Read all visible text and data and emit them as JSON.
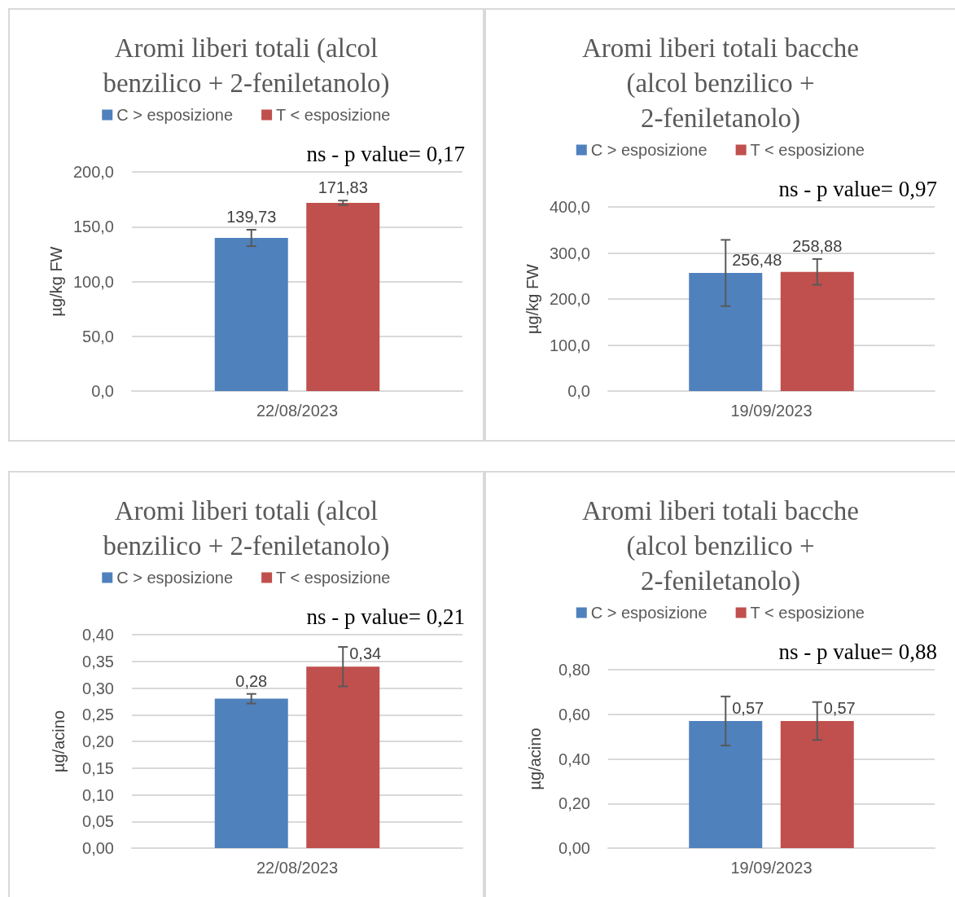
{
  "chart_data": [
    {
      "type": "bar",
      "title": "Aromi liberi totali (alcol benzilico + 2-feniletanolo)",
      "ylabel": "µg/kg FW",
      "categories": [
        "22/08/2023"
      ],
      "series": [
        {
          "name": "C > esposizione",
          "color": "#4f81bd",
          "values": [
            139.73
          ],
          "value_labels": [
            "139,73"
          ],
          "errors": [
            7.5
          ]
        },
        {
          "name": "T < esposizione",
          "color": "#c0504d",
          "values": [
            171.83
          ],
          "value_labels": [
            "171,83"
          ],
          "errors": [
            2
          ]
        }
      ],
      "ylim": [
        0,
        200
      ],
      "yticks": [
        {
          "value": 0,
          "label": "0,0"
        },
        {
          "value": 50,
          "label": "50,0"
        },
        {
          "value": 100,
          "label": "100,0"
        },
        {
          "value": 150,
          "label": "150,0"
        },
        {
          "value": 200,
          "label": "200,0"
        }
      ],
      "annotations": [
        "ns - p value= 0,17"
      ],
      "grid": "y",
      "legend": "top"
    },
    {
      "type": "bar",
      "title": "Aromi liberi totali bacche (alcol benzilico + 2-feniletanolo)",
      "ylabel": "µg/kg FW",
      "categories": [
        "19/09/2023"
      ],
      "series": [
        {
          "name": "C > esposizione",
          "color": "#4f81bd",
          "values": [
            256.48
          ],
          "value_labels": [
            "256,48"
          ],
          "errors": [
            72
          ]
        },
        {
          "name": "T < esposizione",
          "color": "#c0504d",
          "values": [
            258.88
          ],
          "value_labels": [
            "258,88"
          ],
          "errors": [
            28
          ]
        }
      ],
      "ylim": [
        0,
        400
      ],
      "yticks": [
        {
          "value": 0,
          "label": "0,0"
        },
        {
          "value": 100,
          "label": "100,0"
        },
        {
          "value": 200,
          "label": "200,0"
        },
        {
          "value": 300,
          "label": "300,0"
        },
        {
          "value": 400,
          "label": "400,0"
        }
      ],
      "annotations": [
        "ns - p value= 0,97"
      ],
      "grid": "y",
      "legend": "top"
    },
    {
      "type": "bar",
      "title": "Aromi liberi totali (alcol benzilico + 2-feniletanolo)",
      "ylabel": "µg/acino",
      "categories": [
        "22/08/2023"
      ],
      "series": [
        {
          "name": "C > esposizione",
          "color": "#4f81bd",
          "values": [
            0.28
          ],
          "value_labels": [
            "0,28"
          ],
          "errors": [
            0.009
          ]
        },
        {
          "name": "T < esposizione",
          "color": "#c0504d",
          "values": [
            0.34
          ],
          "value_labels": [
            "0,34"
          ],
          "errors": [
            0.037
          ]
        }
      ],
      "ylim": [
        0,
        0.4
      ],
      "yticks": [
        {
          "value": 0,
          "label": "0,00"
        },
        {
          "value": 0.05,
          "label": "0,05"
        },
        {
          "value": 0.1,
          "label": "0,10"
        },
        {
          "value": 0.15,
          "label": "0,15"
        },
        {
          "value": 0.2,
          "label": "0,20"
        },
        {
          "value": 0.25,
          "label": "0,25"
        },
        {
          "value": 0.3,
          "label": "0,30"
        },
        {
          "value": 0.35,
          "label": "0,35"
        },
        {
          "value": 0.4,
          "label": "0,40"
        }
      ],
      "annotations": [
        "ns - p value= 0,21"
      ],
      "grid": "y",
      "legend": "top"
    },
    {
      "type": "bar",
      "title": "Aromi liberi totali bacche (alcol benzilico + 2-feniletanolo)",
      "ylabel": "µg/acino",
      "categories": [
        "19/09/2023"
      ],
      "series": [
        {
          "name": "C > esposizione",
          "color": "#4f81bd",
          "values": [
            0.57
          ],
          "value_labels": [
            "0,57"
          ],
          "errors": [
            0.11
          ]
        },
        {
          "name": "T < esposizione",
          "color": "#c0504d",
          "values": [
            0.57
          ],
          "value_labels": [
            "0,57"
          ],
          "errors": [
            0.085
          ]
        }
      ],
      "ylim": [
        0,
        0.8
      ],
      "yticks": [
        {
          "value": 0,
          "label": "0,00"
        },
        {
          "value": 0.2,
          "label": "0,20"
        },
        {
          "value": 0.4,
          "label": "0,40"
        },
        {
          "value": 0.6,
          "label": "0,60"
        },
        {
          "value": 0.8,
          "label": "0,80"
        }
      ],
      "annotations": [
        "ns - p value= 0,88"
      ],
      "grid": "y",
      "legend": "top"
    }
  ]
}
